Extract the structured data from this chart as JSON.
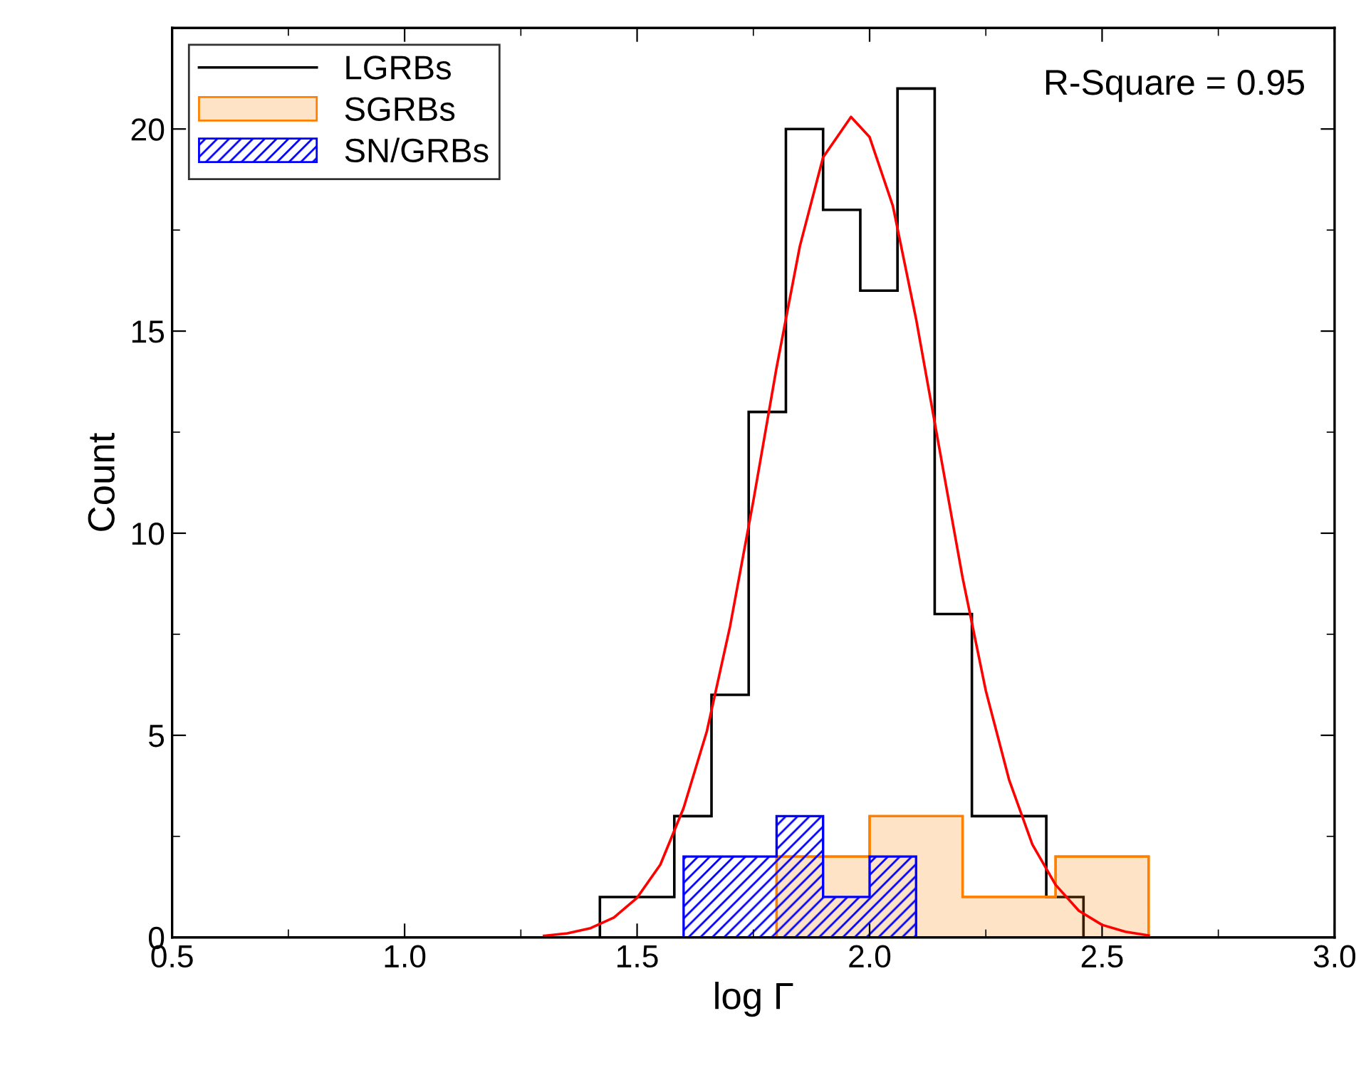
{
  "chart_data": {
    "type": "histogram",
    "xlabel": "log Γ",
    "ylabel": "Count",
    "xlim": [
      0.5,
      3.0
    ],
    "xticks": [
      {
        "value": 0.5,
        "label": "0.5"
      },
      {
        "value": 1.0,
        "label": "1.0"
      },
      {
        "value": 1.5,
        "label": "1.5"
      },
      {
        "value": 2.0,
        "label": "2.0"
      },
      {
        "value": 2.5,
        "label": "2.5"
      },
      {
        "value": 3.0,
        "label": "3.0"
      }
    ],
    "ylim": [
      0,
      22.5
    ],
    "yticks": [
      0,
      5,
      10,
      15,
      20
    ],
    "legend": "top left",
    "grid": false,
    "annotations": [
      "R-Square = 0.95"
    ],
    "series": [
      {
        "name": "LGRBs",
        "color": "#000000",
        "bins": [
          1.42,
          1.58,
          1.66,
          1.74,
          1.82,
          1.9,
          1.98,
          2.06,
          2.14,
          2.22,
          2.38,
          2.46
        ],
        "values": [
          1,
          3,
          6,
          13,
          20,
          18,
          16,
          21,
          8,
          3,
          1
        ]
      },
      {
        "name": "SGRBs",
        "color": "#ff8000",
        "bins": [
          1.8,
          2.0,
          2.2,
          2.4,
          2.6
        ],
        "values": [
          2,
          3,
          1,
          2
        ]
      },
      {
        "name": "SN/GRBs",
        "color": "#0000ff",
        "bins": [
          1.6,
          1.7,
          1.8,
          1.9,
          2.0,
          2.1
        ],
        "values": [
          2,
          2,
          3,
          1,
          2
        ]
      },
      {
        "type": "line",
        "color": "#ff0000",
        "x": [
          1.3,
          1.35,
          1.4,
          1.45,
          1.5,
          1.55,
          1.6,
          1.65,
          1.7,
          1.75,
          1.8,
          1.85,
          1.9,
          1.96,
          2.0,
          2.05,
          2.1,
          2.15,
          2.2,
          2.25,
          2.3,
          2.35,
          2.4,
          2.45,
          2.5,
          2.55,
          2.6
        ],
        "values": [
          0.04,
          0.1,
          0.23,
          0.49,
          0.98,
          1.8,
          3.2,
          5.1,
          7.7,
          10.8,
          14.1,
          17.1,
          19.3,
          20.3,
          19.8,
          18.1,
          15.3,
          12.1,
          8.9,
          6.1,
          3.9,
          2.3,
          1.3,
          0.66,
          0.31,
          0.14,
          0.05
        ]
      }
    ]
  }
}
